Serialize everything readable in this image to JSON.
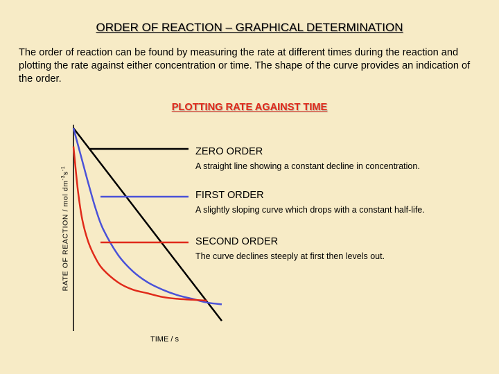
{
  "title": "ORDER OF REACTION – GRAPHICAL DETERMINATION",
  "intro": "The order of reaction can be found by measuring the rate at different times during the reaction and plotting the rate against either concentration or time.  The shape of the curve provides an indication of the order.",
  "subtitle": "PLOTTING RATE AGAINST TIME",
  "legend": {
    "zero_head": "ZERO ORDER",
    "zero_desc": "A straight line showing a constant decline in concentration.",
    "first_head": "FIRST ORDER",
    "first_desc": "A slightly sloping curve which drops with a constant half-life.",
    "second_head": "SECOND ORDER",
    "second_desc": "The curve declines steeply at first then levels out."
  },
  "colors": {
    "background": "#f7ebc6",
    "zero": "#000000",
    "first": "#4a52d8",
    "second": "#e02a1a"
  },
  "chart_data": {
    "type": "line",
    "xlabel": "TIME  / s",
    "ylabel_main": "RATE OF REACTION  / mol dm",
    "ylabel_exp1": "-3",
    "ylabel_mid": "s",
    "ylabel_exp2": "-1",
    "xlim": [
      0,
      1
    ],
    "ylim": [
      0,
      1
    ],
    "grid": false,
    "series": [
      {
        "name": "ZERO ORDER",
        "color": "#000000",
        "points": [
          [
            0.0,
            1.0
          ],
          [
            1.0,
            -0.05
          ]
        ]
      },
      {
        "name": "FIRST ORDER",
        "color": "#4a52d8",
        "points": [
          [
            0.0,
            1.0
          ],
          [
            0.05,
            0.85
          ],
          [
            0.1,
            0.7
          ],
          [
            0.15,
            0.56
          ],
          [
            0.2,
            0.45
          ],
          [
            0.3,
            0.31
          ],
          [
            0.4,
            0.22
          ],
          [
            0.5,
            0.16
          ],
          [
            0.6,
            0.12
          ],
          [
            0.7,
            0.09
          ],
          [
            0.8,
            0.07
          ],
          [
            0.9,
            0.05
          ],
          [
            1.0,
            0.04
          ]
        ]
      },
      {
        "name": "SECOND ORDER",
        "color": "#e02a1a",
        "points": [
          [
            0.0,
            0.9
          ],
          [
            0.03,
            0.66
          ],
          [
            0.06,
            0.5
          ],
          [
            0.1,
            0.38
          ],
          [
            0.15,
            0.29
          ],
          [
            0.2,
            0.23
          ],
          [
            0.3,
            0.16
          ],
          [
            0.4,
            0.12
          ],
          [
            0.5,
            0.1
          ],
          [
            0.6,
            0.08
          ],
          [
            0.7,
            0.07
          ],
          [
            0.8,
            0.065
          ],
          [
            0.9,
            0.06
          ]
        ]
      }
    ]
  }
}
